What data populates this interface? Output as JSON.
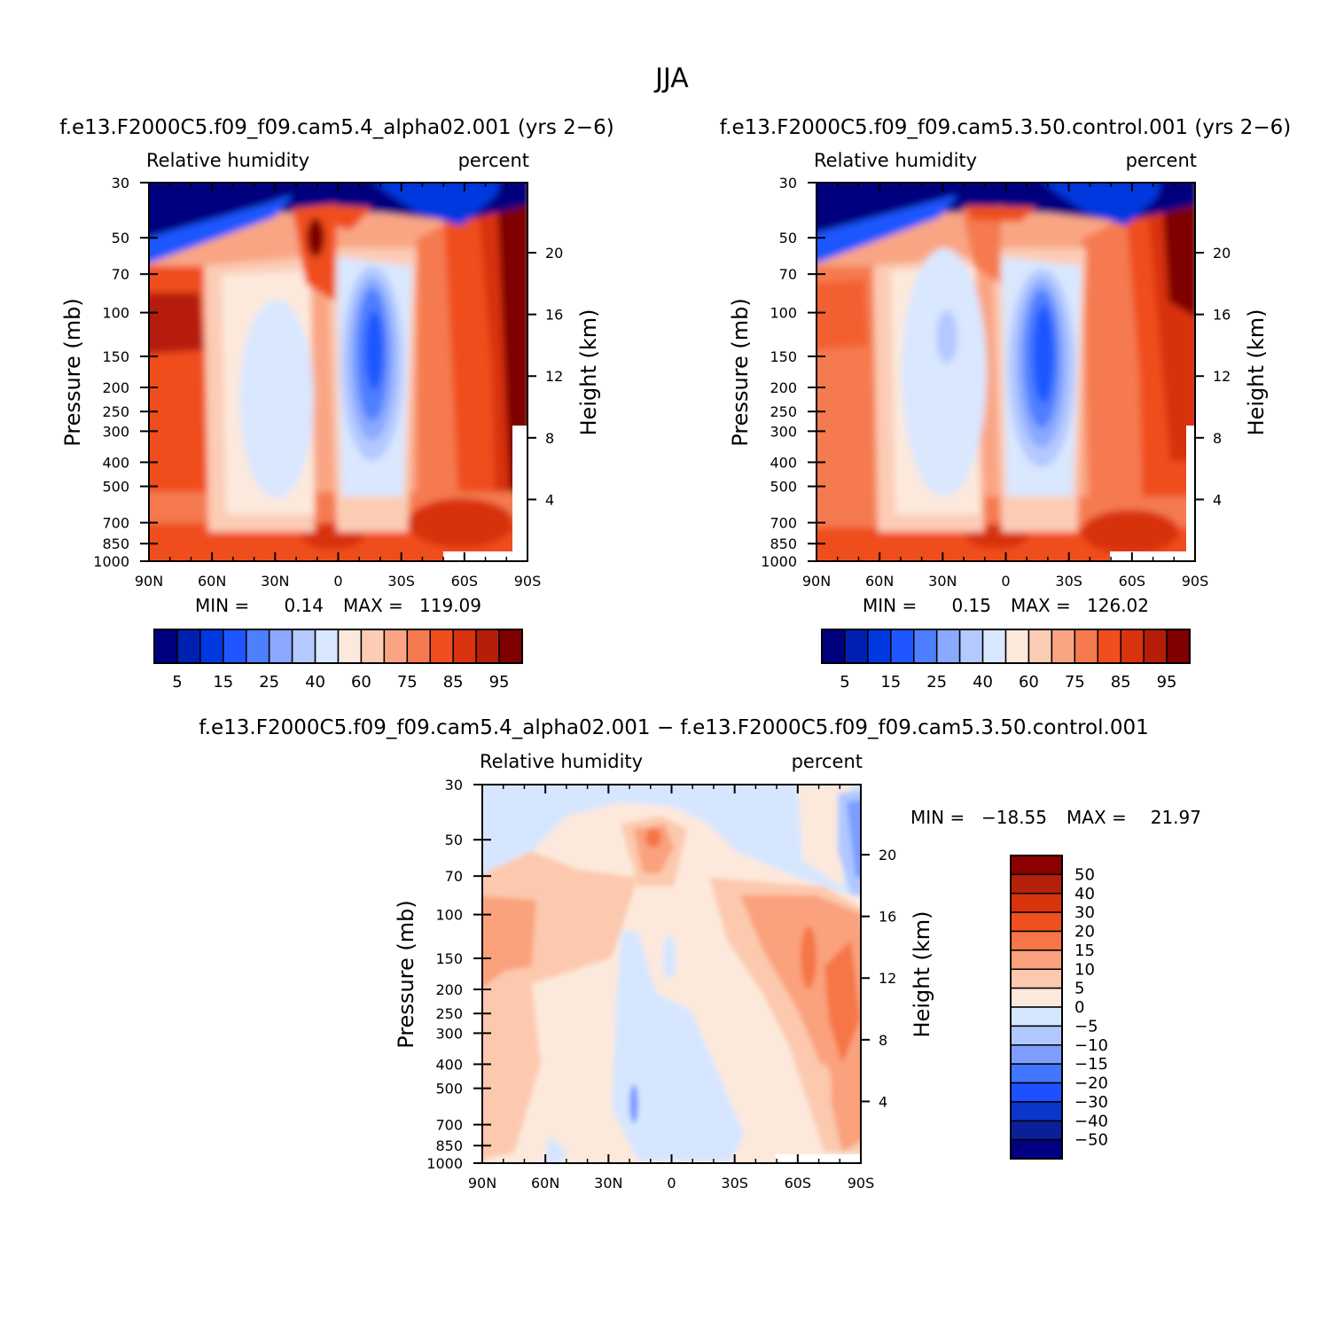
{
  "title": "JJA",
  "colors": {
    "rh_levels": [
      "#00007f",
      "#0020b2",
      "#0038e0",
      "#1f56ff",
      "#4d7fff",
      "#8aa9ff",
      "#b3c9ff",
      "#d9e7ff",
      "#fde9dc",
      "#fcccb5",
      "#f9a584",
      "#f57a4f",
      "#f04e1f",
      "#d8320e",
      "#b51e08",
      "#7f0000"
    ],
    "diff_levels": [
      "#000080",
      "#0b1f99",
      "#0a36cc",
      "#1f50ff",
      "#4176ff",
      "#7d9dff",
      "#b0c8ff",
      "#d7e6ff",
      "#fde9dc",
      "#fcc9ae",
      "#faa17d",
      "#f67647",
      "#f0501f",
      "#d9330d",
      "#b5200a",
      "#8b0000"
    ]
  },
  "chart_data": [
    {
      "type": "heatmap",
      "title": "f.e13.F2000C5.f09_f09.cam5.4_alpha02.001 (yrs 2−6)",
      "left_label": "Relative humidity",
      "right_label": "percent",
      "ylabel": "Pressure (mb)",
      "ylabel_right": "Height (km)",
      "x_ticks": [
        "90N",
        "60N",
        "30N",
        "0",
        "30S",
        "60S",
        "90S"
      ],
      "y_ticks": [
        "30",
        "50",
        "70",
        "100",
        "150",
        "200",
        "250",
        "300",
        "400",
        "500",
        "700",
        "850",
        "1000"
      ],
      "height_ticks": [
        "20",
        "16",
        "12",
        "8",
        "4"
      ],
      "stats": {
        "min_label": "MIN =",
        "min_value": "0.14",
        "max_label": "MAX =",
        "max_value": "119.09"
      },
      "colorbar_labels": [
        "5",
        "15",
        "25",
        "40",
        "60",
        "75",
        "85",
        "95"
      ],
      "levels": [
        5,
        10,
        15,
        20,
        25,
        30,
        40,
        50,
        60,
        70,
        75,
        80,
        85,
        90,
        95
      ]
    },
    {
      "type": "heatmap",
      "title": "f.e13.F2000C5.f09_f09.cam5.3.50.control.001 (yrs 2−6)",
      "left_label": "Relative humidity",
      "right_label": "percent",
      "ylabel": "Pressure (mb)",
      "ylabel_right": "Height (km)",
      "x_ticks": [
        "90N",
        "60N",
        "30N",
        "0",
        "30S",
        "60S",
        "90S"
      ],
      "y_ticks": [
        "30",
        "50",
        "70",
        "100",
        "150",
        "200",
        "250",
        "300",
        "400",
        "500",
        "700",
        "850",
        "1000"
      ],
      "height_ticks": [
        "20",
        "16",
        "12",
        "8",
        "4"
      ],
      "stats": {
        "min_label": "MIN =",
        "min_value": "0.15",
        "max_label": "MAX =",
        "max_value": "126.02"
      },
      "colorbar_labels": [
        "5",
        "15",
        "25",
        "40",
        "60",
        "75",
        "85",
        "95"
      ],
      "levels": [
        5,
        10,
        15,
        20,
        25,
        30,
        40,
        50,
        60,
        70,
        75,
        80,
        85,
        90,
        95
      ]
    },
    {
      "type": "heatmap",
      "title": "f.e13.F2000C5.f09_f09.cam5.4_alpha02.001 − f.e13.F2000C5.f09_f09.cam5.3.50.control.001",
      "left_label": "Relative humidity",
      "right_label": "percent",
      "ylabel": "Pressure (mb)",
      "ylabel_right": "Height (km)",
      "x_ticks": [
        "90N",
        "60N",
        "30N",
        "0",
        "30S",
        "60S",
        "90S"
      ],
      "y_ticks": [
        "30",
        "50",
        "70",
        "100",
        "150",
        "200",
        "250",
        "300",
        "400",
        "500",
        "700",
        "850",
        "1000"
      ],
      "height_ticks": [
        "20",
        "16",
        "12",
        "8",
        "4"
      ],
      "stats": {
        "min_label": "MIN =",
        "min_value": "−18.55",
        "max_label": "MAX =",
        "max_value": "21.97"
      },
      "colorbar_labels": [
        "50",
        "40",
        "30",
        "20",
        "15",
        "10",
        "5",
        "0",
        "−5",
        "−10",
        "−15",
        "−20",
        "−30",
        "−40",
        "−50"
      ],
      "levels": [
        -50,
        -40,
        -30,
        -20,
        -15,
        -10,
        -5,
        0,
        5,
        10,
        15,
        20,
        30,
        40,
        50
      ]
    }
  ]
}
